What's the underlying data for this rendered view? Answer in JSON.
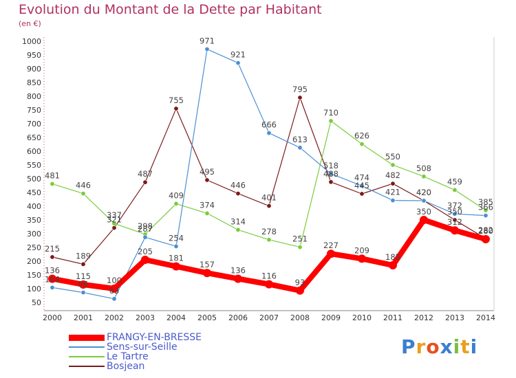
{
  "title": "Evolution du Montant de la Dette par Habitant",
  "subtitle": "(en €)",
  "logo_text": "Proxiti",
  "chart_data": {
    "type": "line",
    "title": "Evolution du Montant de la Dette par Habitant",
    "subtitle": "(en €)",
    "x": [
      "2000",
      "2001",
      "2002",
      "2003",
      "2004",
      "2005",
      "2006",
      "2007",
      "2008",
      "2009",
      "2010",
      "2011",
      "2012",
      "2013",
      "2014"
    ],
    "yticks": [
      50,
      100,
      150,
      200,
      250,
      300,
      350,
      400,
      450,
      500,
      550,
      600,
      650,
      700,
      750,
      800,
      850,
      900,
      950,
      1000
    ],
    "ylim": [
      50,
      1000
    ],
    "grid": false,
    "legend_position": "bottom-left",
    "series": [
      {
        "name": "FRANGY-EN-BRESSE",
        "color": "#ff0000",
        "values": [
          136,
          115,
          100,
          205,
          181,
          157,
          136,
          116,
          93,
          227,
          209,
          185,
          350,
          312,
          280
        ]
      },
      {
        "name": "Sens-sur-Seille",
        "color": "#4a8fd4",
        "values": [
          104,
          86,
          63,
          287,
          254,
          971,
          921,
          666,
          613,
          518,
          474,
          421,
          420,
          372,
          366
        ]
      },
      {
        "name": "Le Tartre",
        "color": "#78cc3c",
        "values": [
          481,
          446,
          337,
          298,
          409,
          374,
          314,
          278,
          251,
          710,
          626,
          550,
          508,
          459,
          385
        ]
      },
      {
        "name": "Bosjean",
        "color": "#7a1a1a",
        "values": [
          215,
          189,
          321,
          487,
          755,
          495,
          446,
          401,
          795,
          488,
          445,
          482,
          420,
          350,
          282
        ]
      }
    ]
  }
}
